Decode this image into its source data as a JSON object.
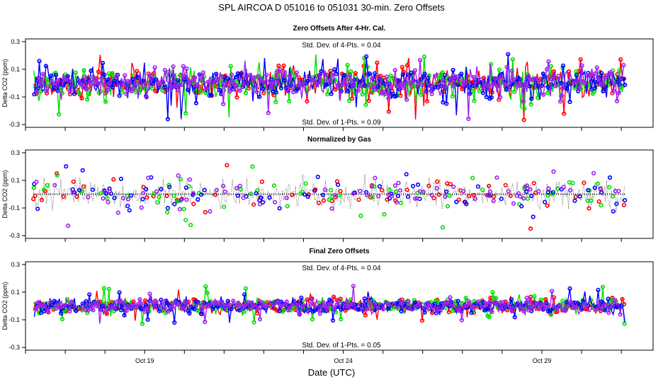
{
  "title": "SPL    AIRCOA D    051016 to 051031    30-min. Zero Offsets",
  "xlabel": "Date (UTC)",
  "colors": {
    "red": "#ff0000",
    "green": "#00dd00",
    "blue": "#0000ff",
    "purple": "#a020f0",
    "black": "#000000"
  },
  "chart_data": [
    {
      "type": "line",
      "title": "Zero Offsets After 4-Hr. Cal.",
      "ylabel": "Delta CO2 (ppm)",
      "ylim": [
        -0.32,
        0.32
      ],
      "yticks": [
        -0.3,
        -0.1,
        0.1,
        0.3
      ],
      "ytick_labels": [
        "-0.3",
        "-0.1",
        "0.1",
        "0.3"
      ],
      "xlim": [
        16.0,
        31.8
      ],
      "xticks": [
        16,
        17,
        18,
        19,
        20,
        21,
        22,
        23,
        24,
        25,
        26,
        27,
        28,
        29,
        30,
        31
      ],
      "xtick_labels": [],
      "annotations": [
        "Std. Dev. of 4-Pts. = 0.04",
        "Std. Dev. of 1-Pts. = 0.09"
      ],
      "series_names": [
        "red",
        "green",
        "blue",
        "purple"
      ],
      "x_range": [
        16.2,
        31.1
      ],
      "point_step_days": 0.042,
      "noise_sd": 0.09,
      "outlier_range": [
        -0.27,
        0.21
      ],
      "mean_line": false
    },
    {
      "type": "scatter",
      "title": "Normalized by Gas",
      "ylabel": "Delta CO2 (ppm)",
      "ylim": [
        -0.32,
        0.32
      ],
      "yticks": [
        -0.3,
        -0.1,
        0.1,
        0.3
      ],
      "ytick_labels": [
        "-0.3",
        "-0.1",
        "0.1",
        "0.3"
      ],
      "xlim": [
        16.0,
        31.8
      ],
      "xticks": [
        16,
        17,
        18,
        19,
        20,
        21,
        22,
        23,
        24,
        25,
        26,
        27,
        28,
        29,
        30,
        31
      ],
      "xtick_labels": [],
      "annotations": [],
      "series_names": [
        "red",
        "green",
        "blue",
        "purple"
      ],
      "x_range": [
        16.2,
        31.1
      ],
      "point_step_days": 0.042,
      "noise_sd": 0.11,
      "outlier_range": [
        -0.28,
        0.22
      ],
      "mean_line": true,
      "mean_value": 0.0
    },
    {
      "type": "line",
      "title": "Final Zero Offsets",
      "ylabel": "Delta CO2 (ppm)",
      "ylim": [
        -0.32,
        0.32
      ],
      "yticks": [
        -0.3,
        -0.1,
        0.1,
        0.3
      ],
      "ytick_labels": [
        "-0.3",
        "-0.1",
        "0.1",
        "0.3"
      ],
      "xlim": [
        16.0,
        31.8
      ],
      "xticks": [
        16,
        17,
        18,
        19,
        20,
        21,
        22,
        23,
        24,
        25,
        26,
        27,
        28,
        29,
        30,
        31
      ],
      "xtick_labels": [
        {
          "x": 19,
          "label": "Oct 19"
        },
        {
          "x": 24,
          "label": "Oct 24"
        },
        {
          "x": 29,
          "label": "Oct 29"
        }
      ],
      "annotations": [
        "Std. Dev. of 4-Pts. = 0.04",
        "Std. Dev. of 1-Pts. = 0.05"
      ],
      "series_names": [
        "red",
        "green",
        "blue",
        "purple"
      ],
      "x_range": [
        16.2,
        31.1
      ],
      "point_step_days": 0.042,
      "noise_sd": 0.045,
      "outlier_range": [
        -0.13,
        0.15
      ],
      "mean_line": false
    }
  ]
}
